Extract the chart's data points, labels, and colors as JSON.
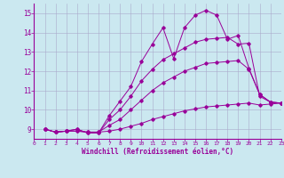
{
  "background_color": "#cbe8f0",
  "grid_color": "#aaaacc",
  "line_color": "#990099",
  "xlim": [
    0,
    23
  ],
  "ylim": [
    8.5,
    15.5
  ],
  "xticks": [
    0,
    1,
    2,
    3,
    4,
    5,
    6,
    7,
    8,
    9,
    10,
    11,
    12,
    13,
    14,
    15,
    16,
    17,
    18,
    19,
    20,
    21,
    22,
    23
  ],
  "yticks": [
    9,
    10,
    11,
    12,
    13,
    14,
    15
  ],
  "xlabel": "Windchill (Refroidissement éolien,°C)",
  "lines": [
    {
      "x": [
        1,
        2,
        3,
        4,
        5,
        6,
        7,
        8,
        9,
        10,
        11,
        12,
        13,
        14,
        15,
        16,
        17,
        18,
        19,
        20,
        21,
        22,
        23
      ],
      "y": [
        9.0,
        8.85,
        8.9,
        8.9,
        8.85,
        8.85,
        8.9,
        9.0,
        9.15,
        9.3,
        9.5,
        9.65,
        9.8,
        9.95,
        10.05,
        10.15,
        10.2,
        10.25,
        10.3,
        10.35,
        10.25,
        10.3,
        10.35
      ]
    },
    {
      "x": [
        1,
        2,
        3,
        4,
        5,
        6,
        7,
        8,
        9,
        10,
        11,
        12,
        13,
        14,
        15,
        16,
        17,
        18,
        19,
        20,
        21,
        22,
        23
      ],
      "y": [
        9.0,
        8.85,
        8.9,
        8.9,
        8.85,
        8.85,
        9.2,
        9.5,
        10.0,
        10.5,
        11.0,
        11.4,
        11.7,
        12.0,
        12.2,
        12.4,
        12.45,
        12.5,
        12.55,
        12.1,
        10.8,
        10.4,
        10.35
      ]
    },
    {
      "x": [
        1,
        2,
        3,
        4,
        5,
        6,
        7,
        8,
        9,
        10,
        11,
        12,
        13,
        14,
        15,
        16,
        17,
        18,
        19,
        20,
        21,
        22,
        23
      ],
      "y": [
        9.0,
        8.85,
        8.9,
        9.0,
        8.8,
        8.8,
        9.5,
        10.0,
        10.7,
        11.5,
        12.1,
        12.6,
        12.9,
        13.2,
        13.5,
        13.65,
        13.7,
        13.75,
        13.4,
        13.45,
        10.7,
        10.4,
        10.35
      ]
    },
    {
      "x": [
        1,
        2,
        3,
        4,
        5,
        6,
        7,
        8,
        9,
        10,
        11,
        12,
        13,
        14,
        15,
        16,
        17,
        18,
        19,
        20,
        21,
        22,
        23
      ],
      "y": [
        9.0,
        8.85,
        8.9,
        9.0,
        8.8,
        8.8,
        9.7,
        10.45,
        11.2,
        12.5,
        13.4,
        14.25,
        12.65,
        14.25,
        14.9,
        15.15,
        14.9,
        13.65,
        13.85,
        12.15,
        10.8,
        10.4,
        10.35
      ]
    }
  ]
}
